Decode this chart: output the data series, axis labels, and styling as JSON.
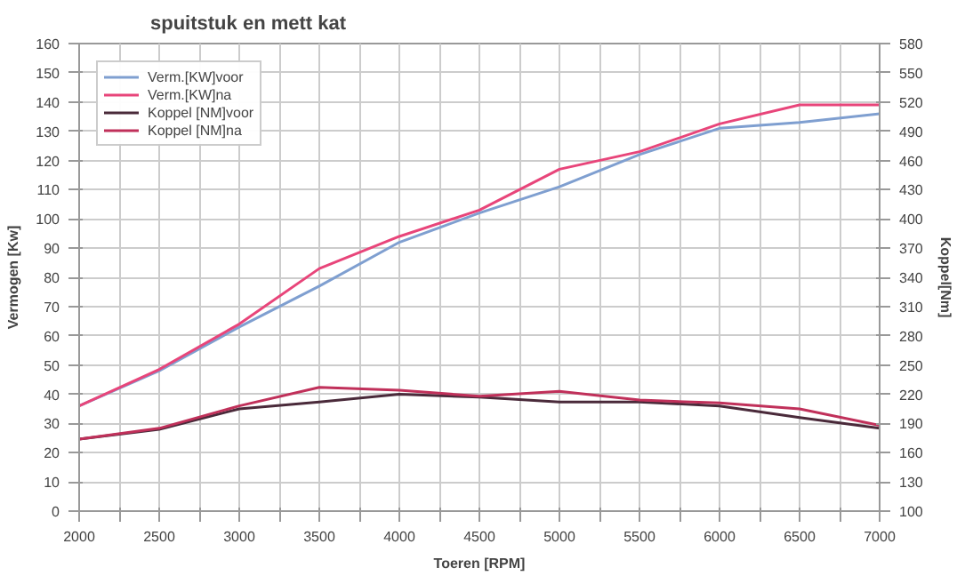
{
  "chart_data": {
    "type": "line",
    "title": "spuitstuk en mett kat",
    "xlabel": "Toeren [RPM]",
    "ylabel": "Vermogen [Kw]",
    "y2label": "Koppel[Nm]",
    "x": [
      2000,
      2500,
      3000,
      3500,
      4000,
      4500,
      5000,
      5500,
      6000,
      6500,
      7000
    ],
    "series": [
      {
        "name": "Verm.[KW]voor",
        "color": "#7f9fd0",
        "values": [
          36,
          48,
          63,
          77,
          92,
          102,
          111,
          122,
          131,
          133,
          136
        ]
      },
      {
        "name": "Verm.[KW]na",
        "color": "#e8457a",
        "values": [
          36,
          48.5,
          64,
          83,
          94,
          103,
          117,
          123,
          132.5,
          139,
          139
        ]
      },
      {
        "name": "Koppel [NM]voor",
        "color": "#4a2a3a",
        "axis": "y2",
        "values": [
          174,
          184,
          205,
          212,
          220,
          217,
          212,
          212,
          208,
          196,
          185
        ]
      },
      {
        "name": "Koppel [NM]na",
        "color": "#c0305a",
        "axis": "y2",
        "values": [
          174,
          185,
          208,
          227,
          224,
          218,
          223,
          214,
          211,
          205,
          188
        ]
      }
    ],
    "xlim": [
      2000,
      7000
    ],
    "xticks": [
      2000,
      {
        "value": 2250,
        "label": null
      },
      2500,
      {
        "value": 2750,
        "label": null
      },
      3000,
      {
        "value": 3250,
        "label": null
      },
      3500,
      {
        "value": 3750,
        "label": null
      },
      4000,
      {
        "value": 4250,
        "label": null
      },
      4500,
      {
        "value": 4750,
        "label": null
      },
      5000,
      {
        "value": 5250,
        "label": null
      },
      5500,
      {
        "value": 5750,
        "label": null
      },
      6000,
      {
        "value": 6250,
        "label": null
      },
      6500,
      {
        "value": 6750,
        "label": null
      },
      7000
    ],
    "ylim": [
      0,
      160
    ],
    "yticks": [
      0,
      10,
      20,
      30,
      40,
      50,
      60,
      70,
      80,
      90,
      100,
      110,
      120,
      130,
      140,
      150,
      160
    ],
    "y2lim": [
      100,
      580
    ],
    "y2ticks": [
      100,
      130,
      160,
      190,
      220,
      250,
      280,
      310,
      340,
      370,
      400,
      430,
      460,
      490,
      520,
      550,
      580
    ],
    "grid": true,
    "legend": "top left",
    "marker": "none",
    "line_style": "solid"
  }
}
